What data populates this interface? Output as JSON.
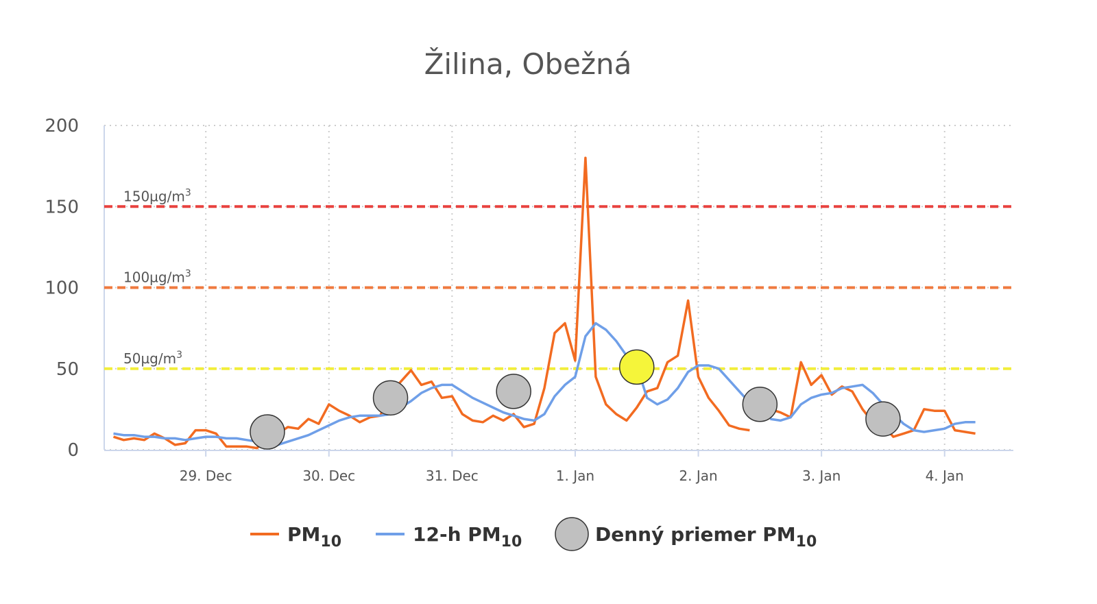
{
  "chart_data": {
    "type": "line",
    "title": "Žilina, Obežná",
    "title_color": "#f26b21",
    "x": [
      -18,
      -16,
      -14,
      -12,
      -10,
      -8,
      -6,
      -4,
      -2,
      0,
      2,
      4,
      6,
      8,
      10,
      12,
      14,
      16,
      18,
      20,
      22,
      24,
      26,
      28,
      30,
      32,
      34,
      36,
      38,
      40,
      42,
      44,
      46,
      48,
      50,
      52,
      54,
      56,
      58,
      60,
      62,
      64,
      66,
      68,
      70,
      72,
      74,
      76,
      78,
      80,
      82,
      84,
      86,
      88,
      90,
      92,
      94,
      96,
      98,
      100,
      102,
      104,
      106,
      108,
      110,
      112,
      114,
      116,
      118,
      120,
      122,
      124,
      126,
      128,
      130,
      132,
      134,
      136,
      138,
      140,
      142,
      144,
      146,
      148,
      150
    ],
    "xlim": [
      -19.8,
      157.4
    ],
    "xticks": [
      {
        "value": 0,
        "label": "29. Dec"
      },
      {
        "value": 24,
        "label": "30. Dec"
      },
      {
        "value": 48,
        "label": "31. Dec"
      },
      {
        "value": 72,
        "label": "1. Jan"
      },
      {
        "value": 96,
        "label": "2. Jan"
      },
      {
        "value": 120,
        "label": "3. Jan"
      },
      {
        "value": 144,
        "label": "4. Jan"
      }
    ],
    "ylim": [
      0,
      200
    ],
    "yticks": [
      0,
      50,
      100,
      150,
      200
    ],
    "grid": true,
    "thresholds": [
      {
        "value": 150,
        "label": "150µg/m",
        "sup": "3",
        "color": "#e8423f"
      },
      {
        "value": 100,
        "label": "100µg/m",
        "sup": "3",
        "color": "#ef7a3f"
      },
      {
        "value": 50,
        "label": "50µg/m",
        "sup": "3",
        "color": "#f2ee3a"
      }
    ],
    "series": [
      {
        "name": "PM",
        "name_sub": "10",
        "color": "#f26b21",
        "values": [
          8,
          6,
          7,
          6,
          10,
          7,
          3,
          4,
          12,
          12,
          10,
          2,
          2,
          2,
          1,
          8,
          10,
          14,
          13,
          19,
          16,
          28,
          24,
          21,
          17,
          20,
          21,
          35,
          42,
          49,
          40,
          42,
          32,
          33,
          22,
          18,
          17,
          21,
          18,
          22,
          14,
          16,
          38,
          72,
          78,
          55,
          180,
          45,
          28,
          22,
          18,
          26,
          36,
          38,
          54,
          58,
          92,
          45,
          32,
          24,
          15,
          13,
          12,
          null,
          25,
          23,
          20,
          54,
          40,
          46,
          34,
          39,
          36,
          25,
          17,
          15,
          8,
          10,
          12,
          25,
          24,
          24,
          12,
          11,
          10
        ]
      },
      {
        "name": "12-h PM",
        "name_sub": "10",
        "color": "#6f9fe8",
        "values": [
          10,
          9,
          9,
          8,
          8,
          7,
          7,
          6,
          7,
          8,
          8,
          7,
          7,
          6,
          5,
          3,
          3,
          5,
          7,
          9,
          12,
          15,
          18,
          20,
          21,
          21,
          21,
          22,
          26,
          30,
          35,
          38,
          40,
          40,
          36,
          32,
          29,
          26,
          23,
          21,
          19,
          18,
          22,
          33,
          40,
          45,
          70,
          78,
          74,
          67,
          58,
          52,
          32,
          28,
          31,
          38,
          48,
          52,
          52,
          50,
          43,
          36,
          29,
          null,
          19,
          18,
          20,
          28,
          32,
          34,
          35,
          38,
          39,
          40,
          35,
          28,
          22,
          16,
          12,
          11,
          12,
          13,
          16,
          17,
          17
        ]
      },
      {
        "name": "Denný priemer PM",
        "name_sub": "10",
        "color": "#c0c0c0",
        "marker": "circle",
        "x": [
          12,
          36,
          60,
          84,
          108,
          132
        ],
        "values": [
          11,
          32,
          36,
          51,
          28,
          19
        ],
        "point_colors": [
          "#c0c0c0",
          "#c0c0c0",
          "#c0c0c0",
          "#f5f53a",
          "#c0c0c0",
          "#c0c0c0"
        ]
      }
    ]
  }
}
